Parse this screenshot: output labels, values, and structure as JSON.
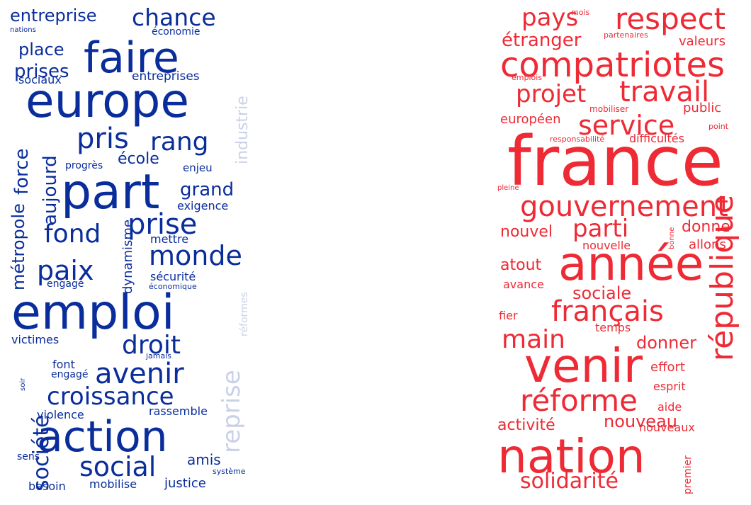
{
  "clouds": [
    {
      "name": "left",
      "color": "#0a2d9c",
      "faint_color": "#c9d1e8",
      "words": [
        {
          "text": "entreprise",
          "size": 24
        },
        {
          "text": "chance",
          "size": 33
        },
        {
          "text": "nations",
          "size": 10
        },
        {
          "text": "économie",
          "size": 14
        },
        {
          "text": "faire",
          "size": 60
        },
        {
          "text": "place",
          "size": 24
        },
        {
          "text": "prises",
          "size": 26
        },
        {
          "text": "sociaux",
          "size": 16
        },
        {
          "text": "entreprises",
          "size": 17
        },
        {
          "text": "industrie",
          "size": 22,
          "faint": true,
          "vertical": true
        },
        {
          "text": "europe",
          "size": 66
        },
        {
          "text": "pris",
          "size": 40
        },
        {
          "text": "rang",
          "size": 36
        },
        {
          "text": "force",
          "size": 26,
          "vertical": true
        },
        {
          "text": "école",
          "size": 22
        },
        {
          "text": "enjeu",
          "size": 15
        },
        {
          "text": "progrès",
          "size": 14
        },
        {
          "text": "aujourd",
          "size": 26,
          "vertical": true
        },
        {
          "text": "part",
          "size": 68
        },
        {
          "text": "grand",
          "size": 26
        },
        {
          "text": "métropole",
          "size": 24,
          "vertical": true
        },
        {
          "text": "exigence",
          "size": 16
        },
        {
          "text": "prise",
          "size": 40
        },
        {
          "text": "fond",
          "size": 36
        },
        {
          "text": "mettre",
          "size": 16
        },
        {
          "text": "dynamisme",
          "size": 18,
          "vertical": true
        },
        {
          "text": "monde",
          "size": 38
        },
        {
          "text": "paix",
          "size": 38
        },
        {
          "text": "sécurité",
          "size": 16
        },
        {
          "text": "engagé",
          "size": 14
        },
        {
          "text": "économique",
          "size": 11
        },
        {
          "text": "réformes",
          "size": 14,
          "faint": true,
          "vertical": true
        },
        {
          "text": "emploi",
          "size": 68
        },
        {
          "text": "victimes",
          "size": 16
        },
        {
          "text": "droit",
          "size": 36
        },
        {
          "text": "reprise",
          "size": 34,
          "faint": true,
          "vertical": true
        },
        {
          "text": "jamais",
          "size": 11
        },
        {
          "text": "font",
          "size": 16
        },
        {
          "text": "engagé",
          "size": 14
        },
        {
          "text": "soir",
          "size": 10,
          "vertical": true
        },
        {
          "text": "avenir",
          "size": 40
        },
        {
          "text": "société",
          "size": 30,
          "vertical": true
        },
        {
          "text": "croissance",
          "size": 34
        },
        {
          "text": "violence",
          "size": 16
        },
        {
          "text": "rassemble",
          "size": 16
        },
        {
          "text": "action",
          "size": 60
        },
        {
          "text": "sens",
          "size": 14
        },
        {
          "text": "social",
          "size": 38
        },
        {
          "text": "amis",
          "size": 20
        },
        {
          "text": "système",
          "size": 11
        },
        {
          "text": "besoin",
          "size": 16
        },
        {
          "text": "mobilise",
          "size": 16
        },
        {
          "text": "justice",
          "size": 18
        }
      ]
    },
    {
      "name": "right",
      "color": "#ee2a35",
      "faint_color": "#f5a3a9",
      "words": [
        {
          "text": "pays",
          "size": 34
        },
        {
          "text": "mois",
          "size": 11
        },
        {
          "text": "respect",
          "size": 42
        },
        {
          "text": "partenaires",
          "size": 11
        },
        {
          "text": "étranger",
          "size": 26
        },
        {
          "text": "valeurs",
          "size": 18
        },
        {
          "text": "compatriotes",
          "size": 48
        },
        {
          "text": "emplois",
          "size": 11
        },
        {
          "text": "projet",
          "size": 34
        },
        {
          "text": "travail",
          "size": 40
        },
        {
          "text": "mobiliser",
          "size": 12
        },
        {
          "text": "public",
          "size": 18
        },
        {
          "text": "européen",
          "size": 18
        },
        {
          "text": "service",
          "size": 38
        },
        {
          "text": "point",
          "size": 11
        },
        {
          "text": "responsabilité",
          "size": 11
        },
        {
          "text": "difficultés",
          "size": 16
        },
        {
          "text": "france",
          "size": 96
        },
        {
          "text": "pleine",
          "size": 10
        },
        {
          "text": "gouvernement",
          "size": 40
        },
        {
          "text": "nouvel",
          "size": 22
        },
        {
          "text": "parti",
          "size": 34
        },
        {
          "text": "donne",
          "size": 22
        },
        {
          "text": "bonne",
          "size": 10,
          "vertical": true
        },
        {
          "text": "nouvelle",
          "size": 16
        },
        {
          "text": "allons",
          "size": 18
        },
        {
          "text": "atout",
          "size": 22
        },
        {
          "text": "année",
          "size": 66
        },
        {
          "text": "avance",
          "size": 16
        },
        {
          "text": "sociale",
          "size": 24
        },
        {
          "text": "français",
          "size": 40
        },
        {
          "text": "république",
          "size": 44,
          "vertical": true
        },
        {
          "text": "fier",
          "size": 16
        },
        {
          "text": "temps",
          "size": 16
        },
        {
          "text": "main",
          "size": 36
        },
        {
          "text": "donner",
          "size": 24
        },
        {
          "text": "venir",
          "size": 66
        },
        {
          "text": "effort",
          "size": 18
        },
        {
          "text": "réforme",
          "size": 42
        },
        {
          "text": "esprit",
          "size": 16
        },
        {
          "text": "aide",
          "size": 16
        },
        {
          "text": "activité",
          "size": 22
        },
        {
          "text": "nouveau",
          "size": 24
        },
        {
          "text": "nouveaux",
          "size": 16
        },
        {
          "text": "nation",
          "size": 66
        },
        {
          "text": "premier",
          "size": 14,
          "vertical": true
        },
        {
          "text": "solidarité",
          "size": 30
        }
      ]
    }
  ]
}
